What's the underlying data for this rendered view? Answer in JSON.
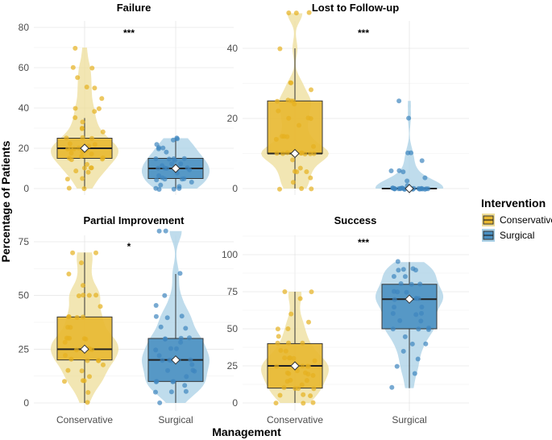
{
  "chart_data": {
    "type": "violin-box",
    "xlabel": "Management",
    "ylabel": "Percentage of Patients",
    "categories": [
      "Conservative",
      "Surgical"
    ],
    "legend": {
      "title": "Intervention",
      "position": "right",
      "entries": [
        {
          "name": "Conservative",
          "color": "#E8B830"
        },
        {
          "name": "Surgical",
          "color": "#4A90C2"
        }
      ]
    },
    "panels": [
      {
        "title": "Failure",
        "ylim": [
          0,
          80
        ],
        "yticks": [
          0,
          20,
          40,
          60,
          80
        ],
        "significance": "***",
        "groups": [
          {
            "name": "Conservative",
            "min": 0,
            "q1": 15,
            "median": 20,
            "q3": 25,
            "max": 35,
            "mean": 20,
            "points": [
              0,
              0,
              5,
              5,
              8,
              9,
              10,
              10,
              10,
              12,
              14,
              15,
              15,
              15,
              16,
              17,
              18,
              18,
              19,
              20,
              20,
              20,
              20,
              20,
              21,
              22,
              22,
              25,
              25,
              25,
              28,
              30,
              30,
              33,
              35,
              38,
              40,
              40,
              45,
              50,
              50,
              55,
              60,
              60,
              70
            ]
          },
          {
            "name": "Surgical",
            "min": 0,
            "q1": 5,
            "median": 10,
            "q3": 15,
            "max": 25,
            "mean": 10,
            "points": [
              0,
              0,
              0,
              0,
              1,
              2,
              3,
              4,
              5,
              5,
              5,
              5,
              6,
              8,
              9,
              10,
              10,
              10,
              10,
              10,
              11,
              12,
              12,
              14,
              15,
              15,
              15,
              15,
              18,
              20,
              20,
              20,
              22,
              24,
              25,
              25
            ]
          }
        ]
      },
      {
        "title": "Lost to Follow-up",
        "ylim": [
          0,
          50
        ],
        "yticks": [
          0,
          20,
          40
        ],
        "significance": "***",
        "groups": [
          {
            "name": "Conservative",
            "min": 0,
            "q1": 10,
            "median": 10,
            "q3": 25,
            "max": 40,
            "mean": 10,
            "points": [
              0,
              0,
              0,
              2,
              3,
              5,
              5,
              5,
              6,
              8,
              10,
              10,
              10,
              10,
              10,
              10,
              10,
              10,
              10,
              10,
              10,
              12,
              14,
              15,
              15,
              15,
              18,
              20,
              20,
              20,
              22,
              24,
              25,
              25,
              25,
              25,
              28,
              30,
              30,
              40,
              50,
              50,
              50
            ]
          },
          {
            "name": "Surgical",
            "min": 0,
            "q1": 0,
            "median": 0,
            "q3": 0,
            "max": 0,
            "mean": 0,
            "points": [
              0,
              0,
              0,
              0,
              0,
              0,
              0,
              0,
              0,
              0,
              0,
              0,
              0,
              0,
              0,
              0,
              0,
              0,
              0,
              0,
              0,
              0,
              0,
              0,
              1,
              2,
              3,
              5,
              5,
              5,
              8,
              10,
              10,
              20,
              25
            ]
          }
        ]
      },
      {
        "title": "Partial Improvement",
        "ylim": [
          0,
          85
        ],
        "yticks": [
          0,
          25,
          50,
          75
        ],
        "significance": "*",
        "groups": [
          {
            "name": "Conservative",
            "min": 0,
            "q1": 20,
            "median": 25,
            "q3": 40,
            "max": 70,
            "mean": 25,
            "points": [
              0,
              5,
              10,
              10,
              10,
              12,
              15,
              15,
              18,
              20,
              20,
              20,
              20,
              22,
              25,
              25,
              25,
              25,
              25,
              28,
              30,
              30,
              30,
              30,
              30,
              35,
              35,
              40,
              40,
              40,
              40,
              45,
              50,
              50,
              50,
              50,
              55,
              60,
              65,
              70,
              70
            ]
          },
          {
            "name": "Surgical",
            "min": 0,
            "q1": 10,
            "median": 20,
            "q3": 30,
            "max": 60,
            "mean": 20,
            "points": [
              0,
              5,
              5,
              5,
              8,
              10,
              10,
              10,
              10,
              12,
              15,
              15,
              15,
              18,
              20,
              20,
              20,
              20,
              20,
              22,
              25,
              25,
              25,
              28,
              30,
              30,
              30,
              30,
              35,
              35,
              40,
              40,
              40,
              45,
              50,
              60,
              80,
              80
            ]
          }
        ]
      },
      {
        "title": "Success",
        "ylim": [
          0,
          100
        ],
        "yticks": [
          0,
          25,
          50,
          75,
          100
        ],
        "significance": "***",
        "groups": [
          {
            "name": "Conservative",
            "min": 0,
            "q1": 10,
            "median": 25,
            "q3": 40,
            "max": 75,
            "mean": 25,
            "points": [
              0,
              0,
              0,
              5,
              5,
              5,
              10,
              10,
              10,
              10,
              12,
              15,
              15,
              15,
              18,
              20,
              20,
              20,
              20,
              22,
              25,
              25,
              25,
              25,
              25,
              28,
              30,
              30,
              30,
              30,
              35,
              35,
              40,
              40,
              40,
              45,
              50,
              50,
              55,
              60,
              70,
              75,
              75
            ]
          },
          {
            "name": "Surgical",
            "min": 10,
            "q1": 50,
            "median": 70,
            "q3": 80,
            "max": 95,
            "mean": 70,
            "points": [
              10,
              20,
              25,
              30,
              35,
              40,
              40,
              45,
              50,
              50,
              50,
              50,
              55,
              55,
              60,
              60,
              60,
              65,
              65,
              70,
              70,
              70,
              70,
              70,
              75,
              75,
              75,
              80,
              80,
              80,
              85,
              85,
              90,
              90,
              90,
              90,
              95
            ]
          }
        ]
      }
    ]
  }
}
